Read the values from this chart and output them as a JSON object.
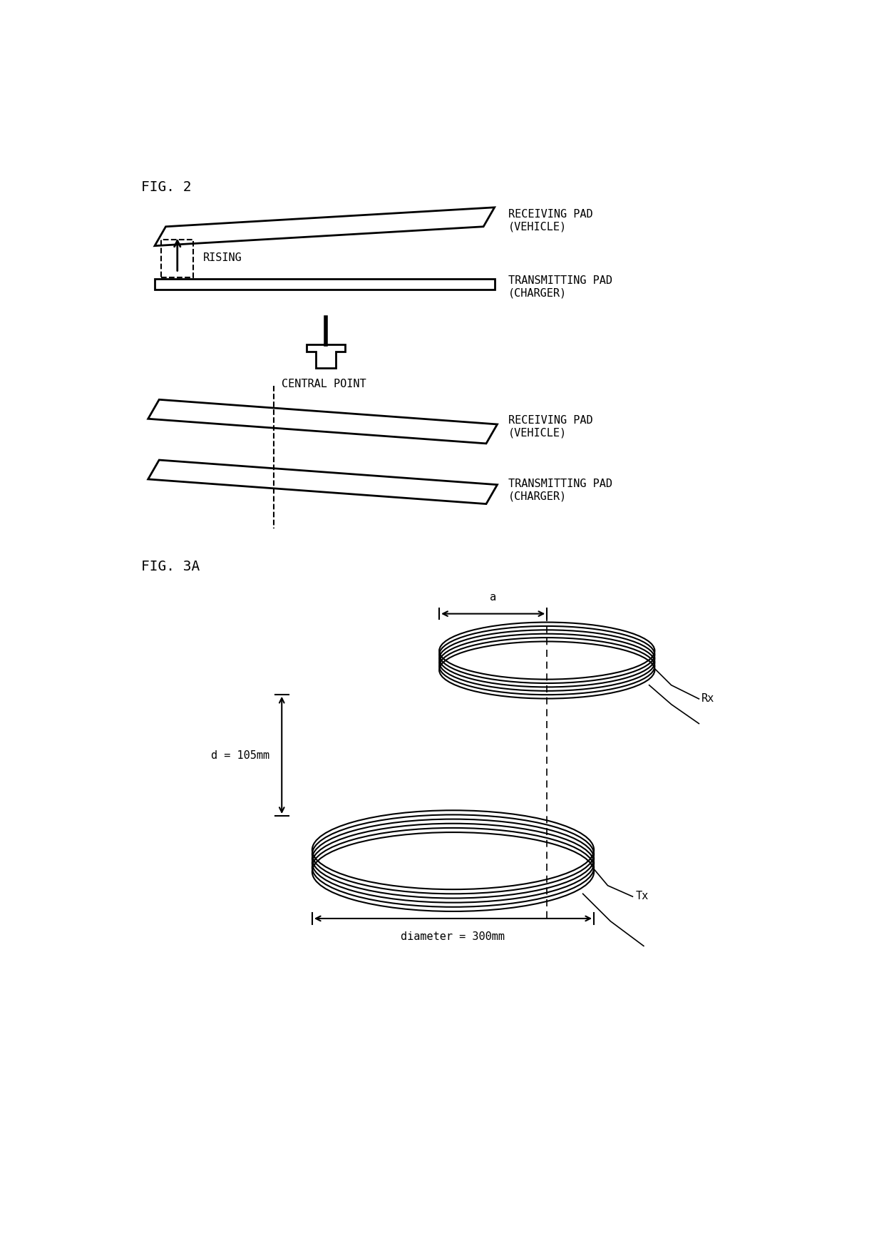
{
  "fig2_label": "FIG. 2",
  "fig3a_label": "FIG. 3A",
  "bg_color": "#ffffff",
  "line_color": "#000000",
  "font_family": "monospace",
  "title_fontsize": 14,
  "label_fontsize": 11,
  "receiving_label": "RECEIVING PAD\n(VEHICLE)",
  "transmitting_label": "TRANSMITTING PAD\n(CHARGER)",
  "rising_label": "RISING",
  "central_point_label": "CENTRAL POINT",
  "rx_label": "Rx",
  "tx_label": "Tx",
  "d_label": "d = 105mm",
  "diameter_label": "diameter = 300mm",
  "a_label": "a"
}
